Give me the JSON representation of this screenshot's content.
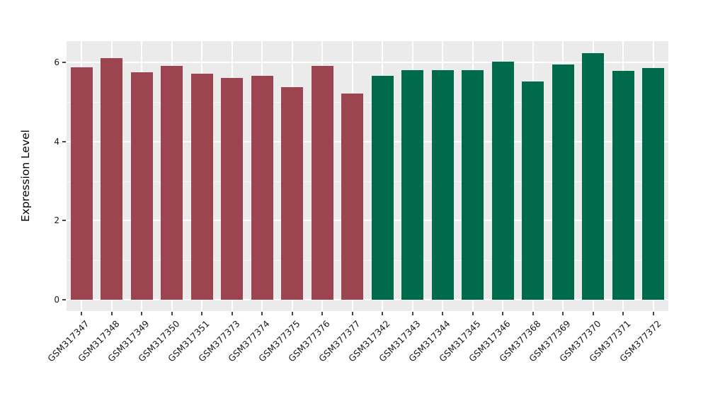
{
  "chart_data": {
    "type": "bar",
    "title": "",
    "xlabel": "",
    "ylabel": "Expression Level",
    "categories": [
      "GSM317347",
      "GSM317348",
      "GSM317349",
      "GSM317350",
      "GSM317351",
      "GSM377373",
      "GSM377374",
      "GSM377375",
      "GSM377376",
      "GSM377377",
      "GSM317342",
      "GSM317343",
      "GSM317344",
      "GSM317345",
      "GSM317346",
      "GSM377368",
      "GSM377369",
      "GSM377370",
      "GSM377371",
      "GSM377372"
    ],
    "values": [
      5.88,
      6.11,
      5.75,
      5.91,
      5.72,
      5.61,
      5.66,
      5.38,
      5.91,
      5.21,
      5.66,
      5.8,
      5.8,
      5.81,
      6.01,
      5.51,
      5.95,
      6.24,
      5.78,
      5.86
    ],
    "colors": [
      "#9C4450",
      "#9C4450",
      "#9C4450",
      "#9C4450",
      "#9C4450",
      "#9C4450",
      "#9C4450",
      "#9C4450",
      "#9C4450",
      "#9C4450",
      "#006B4C",
      "#006B4C",
      "#006B4C",
      "#006B4C",
      "#006B4C",
      "#006B4C",
      "#006B4C",
      "#006B4C",
      "#006B4C",
      "#006B4C"
    ],
    "group_colors": {
      "group1": "#9C4450",
      "group2": "#006B4C"
    },
    "yticks": [
      0,
      2,
      4,
      6
    ],
    "yticks_minor": [
      1,
      3,
      5
    ],
    "ylim": [
      -0.29,
      6.54
    ],
    "grid": "major+minor horizontal white, major vertical white at category centers",
    "legend_position": "none",
    "panel_background": "#EBEBEB",
    "grid_color": "#FFFFFF",
    "xtick_rotation_deg": 45
  }
}
